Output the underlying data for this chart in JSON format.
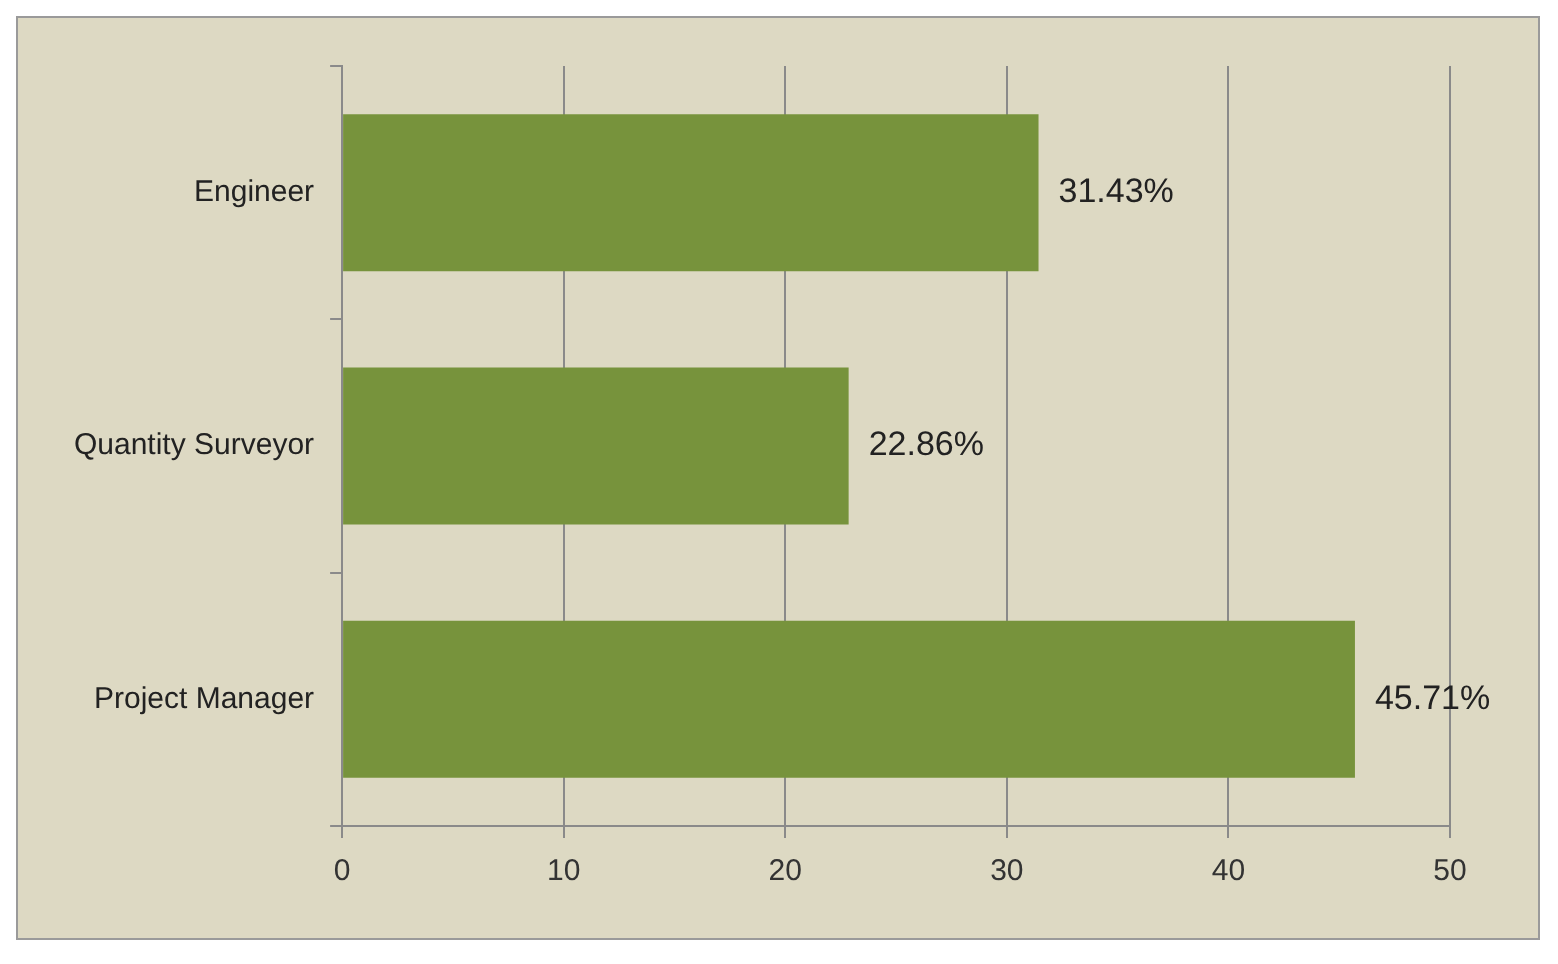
{
  "chart_data": {
    "type": "bar",
    "orientation": "horizontal",
    "categories": [
      "Engineer",
      "Quantity Surveyor",
      "Project Manager"
    ],
    "values": [
      31.43,
      22.86,
      45.71
    ],
    "value_labels": [
      "31.43%",
      "22.86%",
      "45.71%"
    ],
    "color": "#77933c",
    "xlim": [
      0,
      50
    ],
    "xticks": [
      0,
      10,
      20,
      30,
      40,
      50
    ],
    "grid": "x"
  }
}
